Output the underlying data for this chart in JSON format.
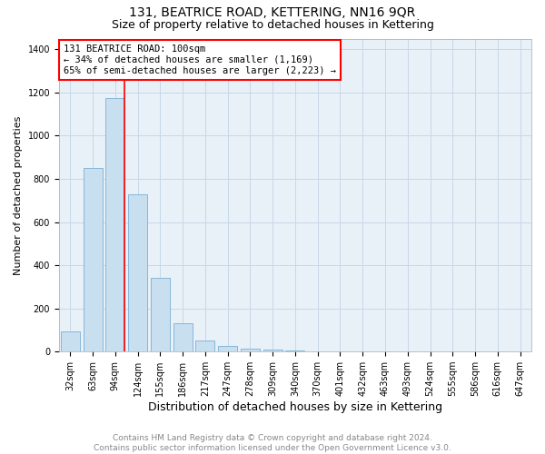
{
  "title": "131, BEATRICE ROAD, KETTERING, NN16 9QR",
  "subtitle": "Size of property relative to detached houses in Kettering",
  "xlabel": "Distribution of detached houses by size in Kettering",
  "ylabel": "Number of detached properties",
  "annotation_line1": "131 BEATRICE ROAD: 100sqm",
  "annotation_line2": "← 34% of detached houses are smaller (1,169)",
  "annotation_line3": "65% of semi-detached houses are larger (2,223) →",
  "footer_line1": "Contains HM Land Registry data © Crown copyright and database right 2024.",
  "footer_line2": "Contains public sector information licensed under the Open Government Licence v3.0.",
  "categories": [
    "32sqm",
    "63sqm",
    "94sqm",
    "124sqm",
    "155sqm",
    "186sqm",
    "217sqm",
    "247sqm",
    "278sqm",
    "309sqm",
    "340sqm",
    "370sqm",
    "401sqm",
    "432sqm",
    "463sqm",
    "493sqm",
    "524sqm",
    "555sqm",
    "586sqm",
    "616sqm",
    "647sqm"
  ],
  "values": [
    95,
    850,
    1175,
    730,
    340,
    130,
    50,
    25,
    15,
    8,
    5,
    3,
    2,
    1,
    1,
    0,
    0,
    0,
    0,
    0,
    0
  ],
  "bar_color": "#c8dff0",
  "bar_edge_color": "#7aafd4",
  "grid_color": "#c8d8e8",
  "bg_color": "#e8f0f8",
  "ylim": [
    0,
    1450
  ],
  "yticks": [
    0,
    200,
    400,
    600,
    800,
    1000,
    1200,
    1400
  ],
  "red_line_x": 2.42,
  "title_fontsize": 10,
  "subtitle_fontsize": 9,
  "xlabel_fontsize": 9,
  "ylabel_fontsize": 8,
  "tick_fontsize": 7,
  "annotation_fontsize": 7.5,
  "footer_color": "#888888",
  "footer_fontsize": 6.5
}
